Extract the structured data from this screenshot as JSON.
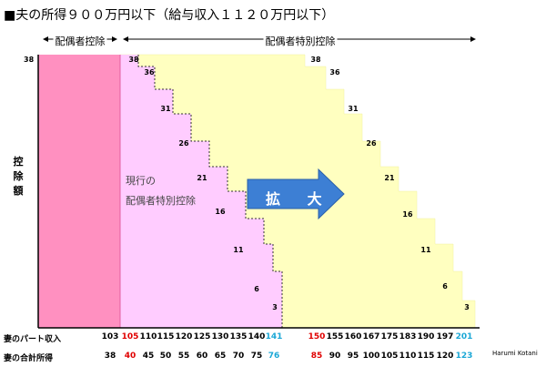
{
  "title": "■夫の所得９００万円以下（給与収入１１２０万円以下）",
  "headers": {
    "spouse_deduction": "配偶者控除",
    "special_deduction": "配偶者特別控除"
  },
  "y_axis_label": "控除額",
  "y_axis_top_value": "38",
  "current_label": [
    "現行の",
    "配偶者特別控除"
  ],
  "arrow_label": "拡 大",
  "credit": "Harumi Kotani",
  "rows": {
    "income_label": "妻のパート収入",
    "total_label": "妻の合計所得",
    "income": [
      {
        "v": "103",
        "c": "#000000"
      },
      {
        "v": "105",
        "c": "#e00000"
      },
      {
        "v": "110",
        "c": "#000000"
      },
      {
        "v": "115",
        "c": "#000000"
      },
      {
        "v": "120",
        "c": "#000000"
      },
      {
        "v": "125",
        "c": "#000000"
      },
      {
        "v": "130",
        "c": "#000000"
      },
      {
        "v": "135",
        "c": "#000000"
      },
      {
        "v": "140",
        "c": "#000000"
      },
      {
        "v": "141",
        "c": "#1aa7d6"
      },
      {
        "v": "150",
        "c": "#e00000"
      },
      {
        "v": "155",
        "c": "#000000"
      },
      {
        "v": "160",
        "c": "#000000"
      },
      {
        "v": "167",
        "c": "#000000"
      },
      {
        "v": "175",
        "c": "#000000"
      },
      {
        "v": "183",
        "c": "#000000"
      },
      {
        "v": "190",
        "c": "#000000"
      },
      {
        "v": "197",
        "c": "#000000"
      },
      {
        "v": "201",
        "c": "#1aa7d6"
      }
    ],
    "total": [
      {
        "v": "38",
        "c": "#000000"
      },
      {
        "v": "40",
        "c": "#e00000"
      },
      {
        "v": "45",
        "c": "#000000"
      },
      {
        "v": "50",
        "c": "#000000"
      },
      {
        "v": "55",
        "c": "#000000"
      },
      {
        "v": "60",
        "c": "#000000"
      },
      {
        "v": "65",
        "c": "#000000"
      },
      {
        "v": "70",
        "c": "#000000"
      },
      {
        "v": "75",
        "c": "#000000"
      },
      {
        "v": "76",
        "c": "#1aa7d6"
      },
      {
        "v": "85",
        "c": "#e00000"
      },
      {
        "v": "90",
        "c": "#000000"
      },
      {
        "v": "95",
        "c": "#000000"
      },
      {
        "v": "100",
        "c": "#000000"
      },
      {
        "v": "105",
        "c": "#000000"
      },
      {
        "v": "110",
        "c": "#000000"
      },
      {
        "v": "115",
        "c": "#000000"
      },
      {
        "v": "120",
        "c": "#000000"
      },
      {
        "v": "123",
        "c": "#1aa7d6"
      }
    ]
  },
  "current_steps": [
    "38",
    "36",
    "31",
    "26",
    "21",
    "16",
    "11",
    "6",
    "3"
  ],
  "expanded_steps": [
    "38",
    "36",
    "31",
    "26",
    "21",
    "16",
    "11",
    "6",
    "3"
  ],
  "colors": {
    "spouse_deduction": "#ff90c0",
    "current_special": "#ffccff",
    "expanded_special": "#ffffc0",
    "arrow": "#3d7fd4",
    "highlight_red": "#e00000",
    "highlight_blue": "#1aa7d6"
  }
}
